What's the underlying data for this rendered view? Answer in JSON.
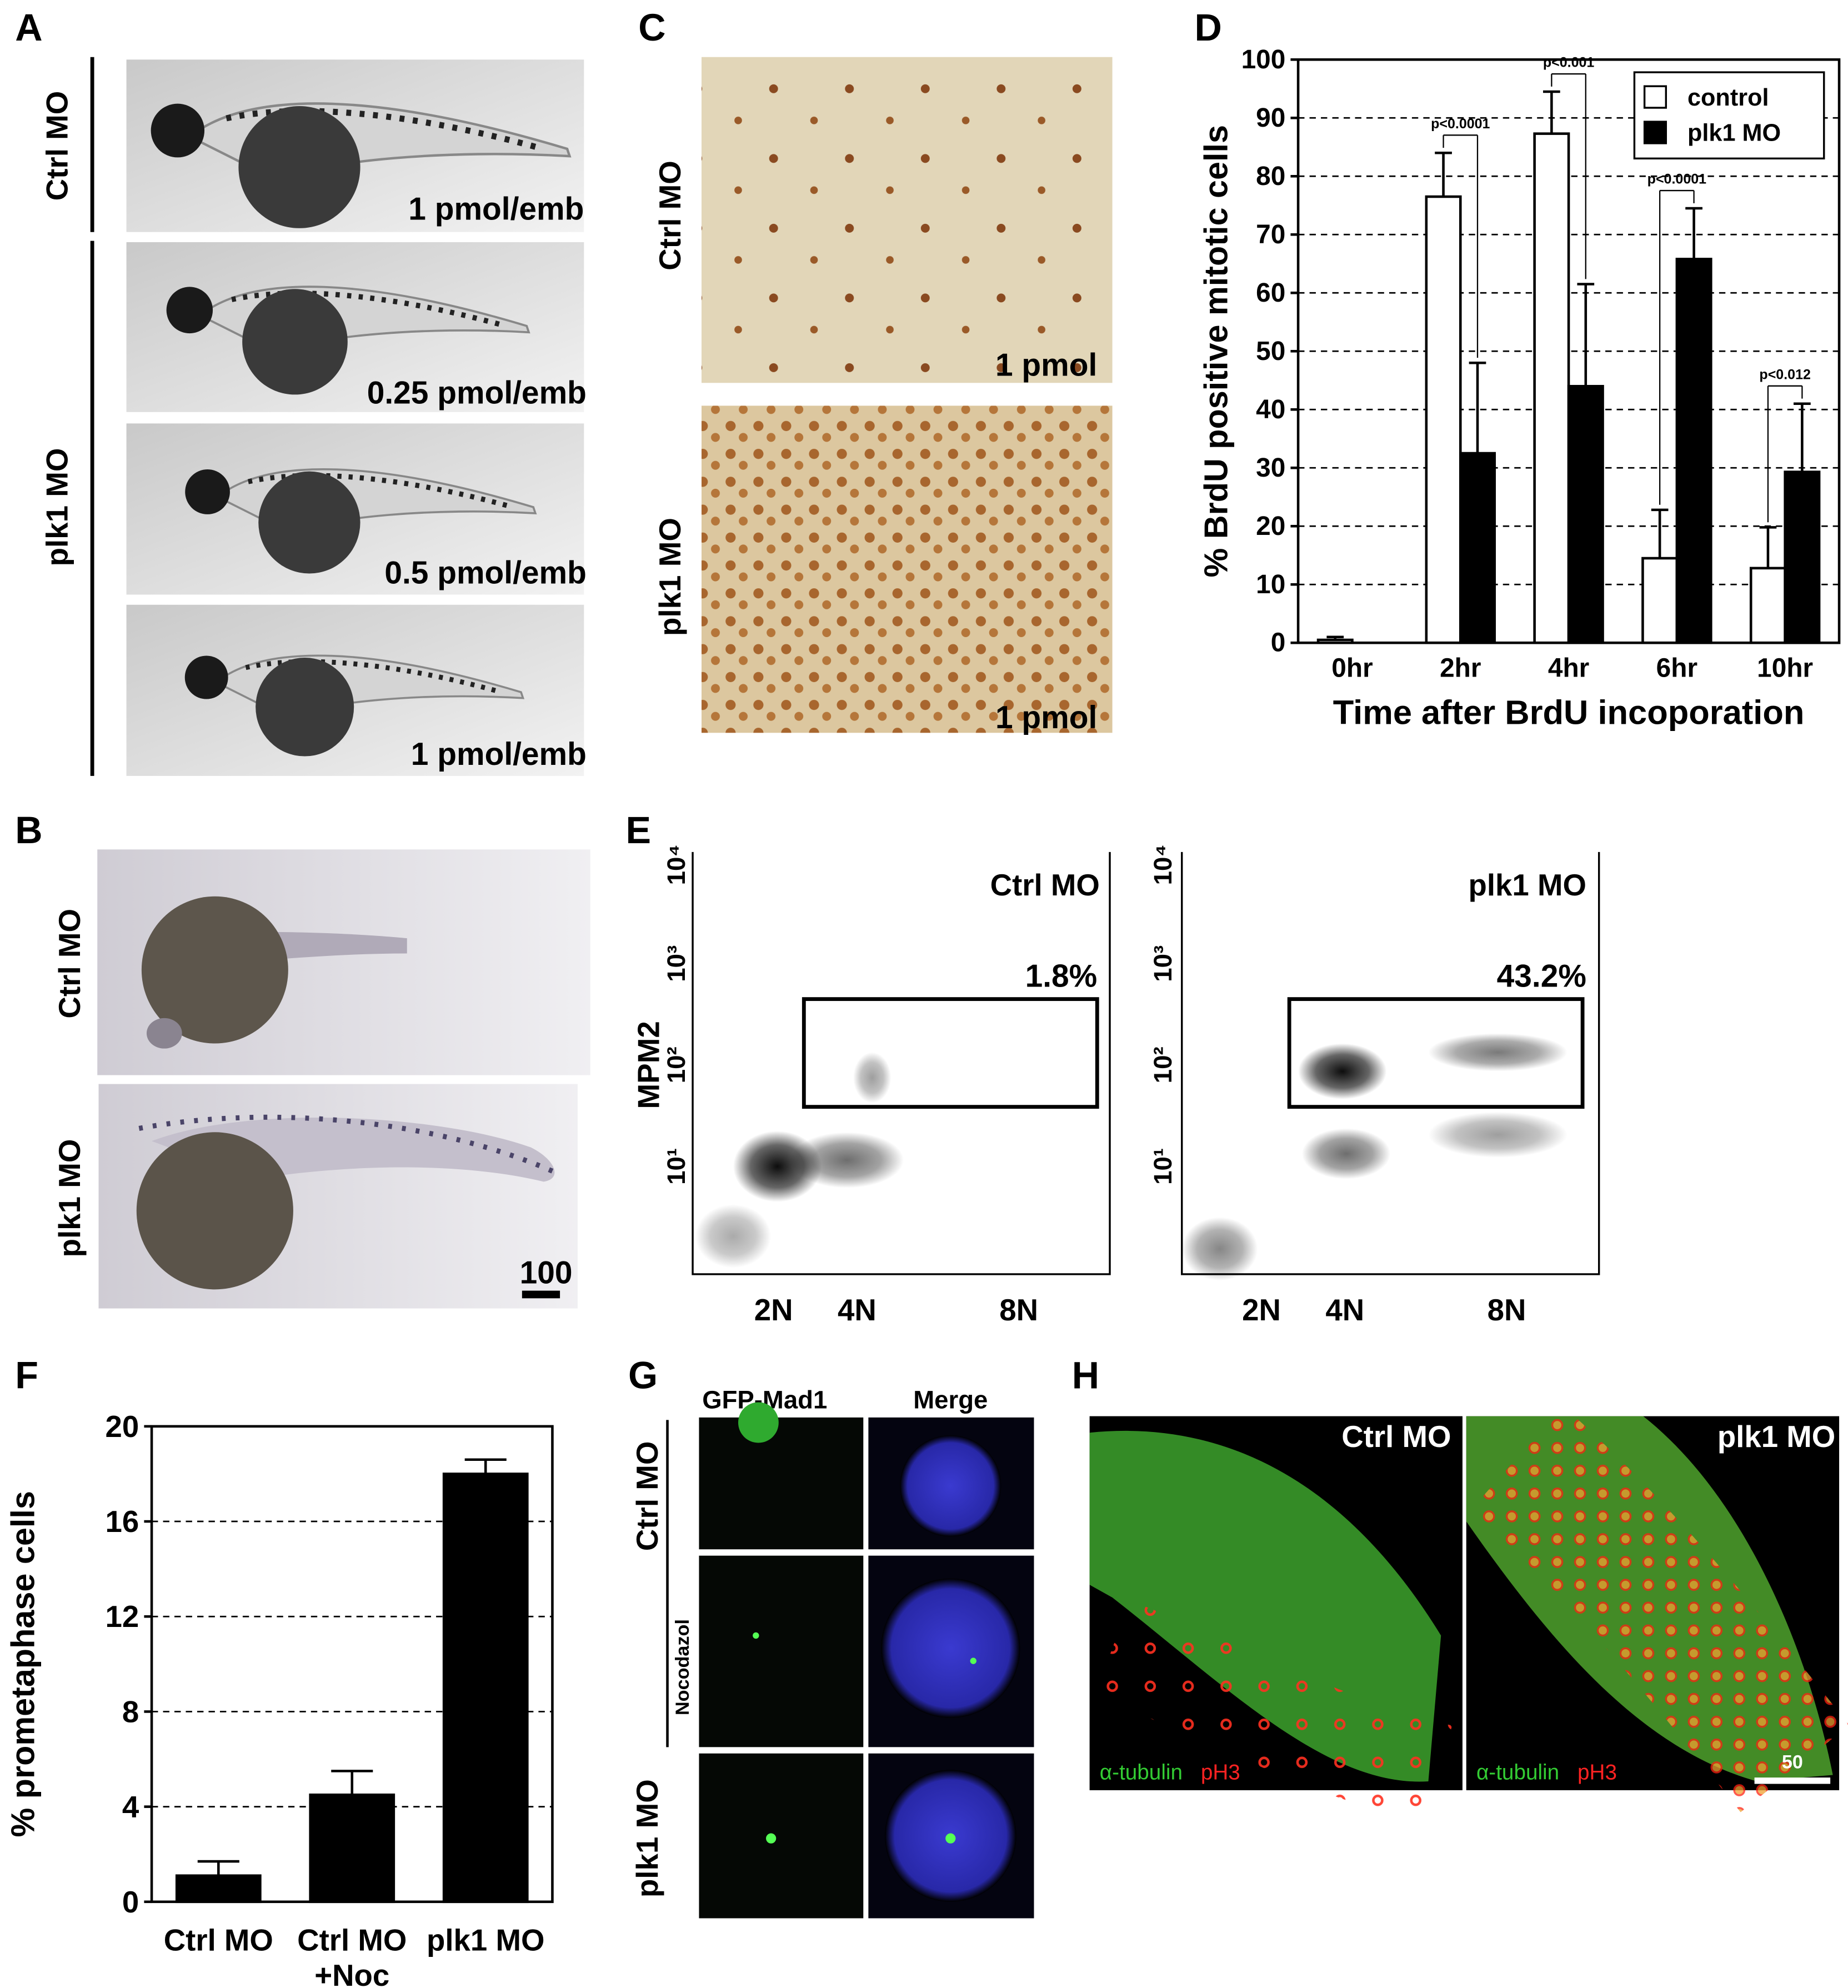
{
  "panel_labels": [
    "A",
    "B",
    "C",
    "D",
    "E",
    "F",
    "G",
    "H"
  ],
  "panel_a": {
    "groups": [
      "Ctrl MO",
      "plk1  MO"
    ],
    "doses": [
      "1 pmol/emb",
      "0.25 pmol/emb",
      "0.5 pmol/emb",
      "1 pmol/emb"
    ]
  },
  "panel_b": {
    "groups": [
      "Ctrl MO",
      "plk1  MO"
    ],
    "scale_bar": "100"
  },
  "panel_c": {
    "groups": [
      "Ctrl MO",
      "plk1 MO"
    ],
    "doses": [
      "1 pmol",
      "1 pmol"
    ]
  },
  "panel_e": {
    "y_label": "MPM2",
    "y_ticks": [
      "10¹",
      "10²",
      "10³",
      "10⁴"
    ],
    "plots": [
      {
        "title": "Ctrl MO",
        "gate": "1.8%",
        "x_ticks": [
          "2N",
          "4N",
          "8N"
        ]
      },
      {
        "title": "plk1 MO",
        "gate": "43.2%",
        "x_ticks": [
          "2N",
          "4N",
          "8N"
        ]
      }
    ]
  },
  "panel_g": {
    "columns": [
      "GFP-Mad1",
      "Merge"
    ],
    "groups": [
      "Ctrl MO",
      "Nocodazol",
      "plk1  MO"
    ]
  },
  "panel_h": {
    "images": [
      {
        "title": "Ctrl MO",
        "stains": [
          "α-tubulin",
          "pH3"
        ]
      },
      {
        "title": "plk1 MO",
        "stains": [
          "α-tubulin",
          "pH3"
        ]
      }
    ],
    "scale_bar": "50"
  },
  "chart_data": [
    {
      "type": "bar",
      "y_label": "% BrdU positive mitotic cells",
      "x_label": "Time after BrdU incoporation",
      "categories": [
        "0hr",
        "2hr",
        "4hr",
        "6hr",
        "10hr"
      ],
      "series": [
        {
          "name": "control",
          "color": "#ffffff",
          "values": [
            0.5,
            76.5,
            87.3,
            14.5,
            12.8
          ],
          "errors": [
            0.5,
            7.5,
            7.2,
            8.3,
            7
          ]
        },
        {
          "name": "plk1 MO",
          "color": "#000000",
          "values": [
            null,
            32.5,
            44,
            65.8,
            29.3
          ],
          "errors": [
            null,
            15.5,
            17.5,
            8.7,
            11.7
          ]
        }
      ],
      "annotations": [
        null,
        "p<0.0001",
        "p<0.001",
        "p<0.0001",
        "p<0.012"
      ],
      "ylim": [
        0,
        100
      ],
      "yticks": [
        0,
        10,
        20,
        30,
        40,
        50,
        60,
        70,
        80,
        90,
        100
      ],
      "grid": true,
      "legend": "upper right"
    },
    {
      "type": "bar",
      "y_label": "% prometaphase cells",
      "categories": [
        "Ctrl MO",
        "Ctrl MO\n+Noc",
        "plk1 MO"
      ],
      "series": [
        {
          "color": "#000000",
          "values": [
            1.1,
            4.5,
            18
          ],
          "errors": [
            0.6,
            1.0,
            0.6
          ]
        }
      ],
      "ylim": [
        0,
        20
      ],
      "yticks": [
        0,
        4,
        8,
        12,
        16,
        20
      ],
      "grid": true
    }
  ]
}
